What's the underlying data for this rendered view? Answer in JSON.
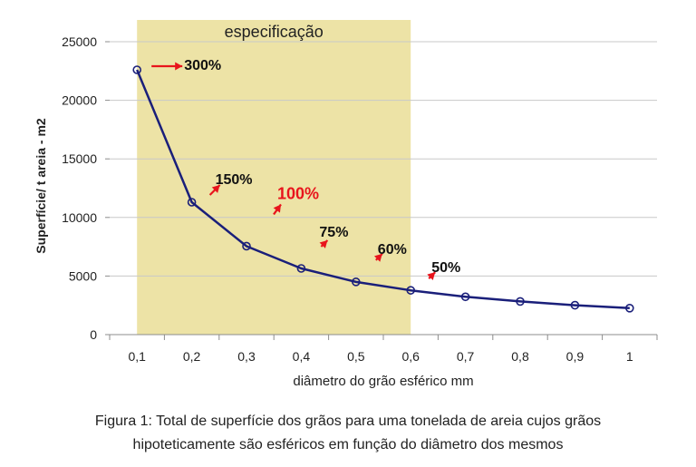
{
  "chart_data": {
    "type": "line",
    "xlabel": "diâmetro do grão esférico mm",
    "ylabel": "Superfície/ t areia - m2",
    "x": [
      0.1,
      0.2,
      0.3,
      0.4,
      0.5,
      0.6,
      0.7,
      0.8,
      0.9,
      1.0
    ],
    "x_tick_labels": [
      "0,1",
      "0,2",
      "0,3",
      "0,4",
      "0,5",
      "0,6",
      "0,7",
      "0,8",
      "0,9",
      "1"
    ],
    "xlim": [
      0.05,
      1.05
    ],
    "ylim": [
      0,
      25000
    ],
    "y_ticks": [
      0,
      5000,
      10000,
      15000,
      20000,
      25000
    ],
    "y_tick_labels": [
      "0",
      "5000",
      "10000",
      "15000",
      "20000",
      "25000"
    ],
    "grid": "horizontal",
    "series": [
      {
        "values": [
          22600,
          11300,
          7550,
          5650,
          4500,
          3780,
          3230,
          2830,
          2510,
          2260
        ],
        "color": "#1a1f7a"
      }
    ],
    "highlight": {
      "label": "especificação",
      "x_range": [
        0.1,
        0.6
      ],
      "color": "#ede3a6"
    },
    "annotations": [
      {
        "text": "300%",
        "x": 0.1,
        "y": 22600,
        "color": "#111111"
      },
      {
        "text": "150%",
        "x": 0.2,
        "y": 11300,
        "color": "#111111"
      },
      {
        "text": "100%",
        "x": 0.3,
        "y": 7550,
        "color": "#e8141c"
      },
      {
        "text": "75%",
        "x": 0.4,
        "y": 5650,
        "color": "#111111"
      },
      {
        "text": "60%",
        "x": 0.5,
        "y": 4500,
        "color": "#111111"
      },
      {
        "text": "50%",
        "x": 0.6,
        "y": 3780,
        "color": "#111111"
      }
    ],
    "arrow_color": "#e8141c"
  },
  "caption": {
    "line1": "Figura 1: Total de superfície dos grãos para uma tonelada de areia cujos grãos",
    "line2": "hipoteticamente são esféricos em função do diâmetro dos mesmos"
  }
}
